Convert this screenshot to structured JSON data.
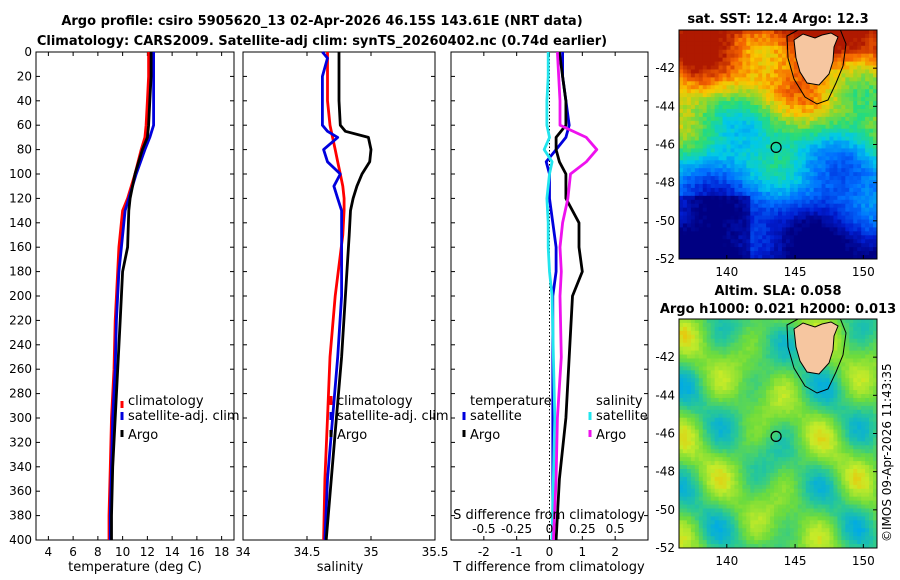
{
  "title_line1": "Argo profile: csiro 5905620_13 02-Apr-2026 46.15S 143.61E (NRT data)",
  "title_line2": "Climatology: CARS2009. Satellite-adj clim: synTS_20260402.nc (0.74d earlier)",
  "watermark": "©IMOS 09-Apr-2026 11:43:35",
  "colors": {
    "climatology": "#ff0000",
    "satellite_adj": "#0000dd",
    "argo": "#000000",
    "sal_satellite": "#22e5ee",
    "sal_argo": "#ee11ee",
    "land": "#f6c6a0"
  },
  "depth_axis": {
    "ylim": [
      0,
      400
    ],
    "ticks": [
      "0",
      "20",
      "40",
      "60",
      "80",
      "100",
      "120",
      "140",
      "160",
      "180",
      "200",
      "220",
      "240",
      "260",
      "280",
      "300",
      "320",
      "340",
      "360",
      "380",
      "400"
    ]
  },
  "chart_data": [
    {
      "type": "line",
      "id": "temperature",
      "xlabel": "temperature (deg C)",
      "xlim": [
        3,
        19
      ],
      "xticks": [
        "4",
        "6",
        "8",
        "10",
        "12",
        "14",
        "16",
        "18"
      ],
      "ylim": [
        400,
        0
      ],
      "depth": [
        0,
        20,
        40,
        60,
        70,
        80,
        100,
        120,
        130,
        160,
        180,
        220,
        260,
        300,
        340,
        380,
        400
      ],
      "series": [
        {
          "name": "climatology",
          "values": [
            12.1,
            12.1,
            12.0,
            11.9,
            11.8,
            11.5,
            11.0,
            10.4,
            10.0,
            9.7,
            9.6,
            9.4,
            9.3,
            9.1,
            9.0,
            8.9,
            8.9
          ]
        },
        {
          "name": "satellite-adj. clim",
          "values": [
            12.5,
            12.5,
            12.5,
            12.5,
            12.2,
            11.8,
            11.1,
            10.5,
            10.2,
            9.9,
            9.7,
            9.5,
            9.4,
            9.2,
            9.1,
            9.0,
            9.0
          ]
        },
        {
          "name": "Argo",
          "values": [
            12.3,
            12.3,
            12.2,
            12.1,
            12.0,
            11.6,
            11.0,
            10.6,
            10.5,
            10.4,
            10.0,
            9.8,
            9.6,
            9.4,
            9.2,
            9.1,
            9.1
          ]
        }
      ],
      "legend": [
        "climatology",
        "satellite-adj. clim",
        "Argo"
      ]
    },
    {
      "type": "line",
      "id": "salinity",
      "xlabel": "salinity",
      "xlim": [
        34,
        35.5
      ],
      "xticks": [
        "34",
        "34.5",
        "35",
        "35.5"
      ],
      "ylim": [
        400,
        0
      ],
      "depth": [
        0,
        5,
        20,
        40,
        60,
        65,
        70,
        80,
        90,
        100,
        110,
        120,
        130,
        150,
        200,
        250,
        300,
        350,
        400
      ],
      "series": [
        {
          "name": "climatology",
          "values": [
            34.66,
            34.66,
            34.66,
            34.66,
            34.68,
            34.69,
            34.7,
            34.72,
            34.74,
            34.76,
            34.78,
            34.79,
            34.79,
            34.78,
            34.72,
            34.68,
            34.66,
            34.64,
            34.63
          ]
        },
        {
          "name": "satellite-adj. clim",
          "values": [
            34.62,
            34.66,
            34.62,
            34.62,
            34.62,
            34.66,
            34.74,
            34.63,
            34.66,
            34.76,
            34.71,
            34.74,
            34.77,
            34.77,
            34.77,
            34.74,
            34.7,
            34.66,
            34.64
          ]
        },
        {
          "name": "Argo",
          "values": [
            34.75,
            34.75,
            34.75,
            34.75,
            34.76,
            34.8,
            34.98,
            35.0,
            34.99,
            34.93,
            34.89,
            34.86,
            34.84,
            34.83,
            34.8,
            34.77,
            34.73,
            34.69,
            34.65
          ]
        }
      ],
      "legend": [
        "climatology",
        "satellite-adj. clim",
        "Argo"
      ]
    },
    {
      "type": "line",
      "id": "difference",
      "xlabel_bottom": "T difference from climatology",
      "xlabel_top": "S difference from climatology",
      "xlim": [
        -3,
        3
      ],
      "xticks_bottom": [
        "-2",
        "-1",
        "0",
        "1",
        "2"
      ],
      "xticks_top": [
        "-0.5",
        "-0.25",
        "0",
        "0.25",
        "0.5"
      ],
      "s_scale_factor": 4,
      "ylim": [
        400,
        0
      ],
      "depth": [
        0,
        20,
        40,
        60,
        70,
        80,
        90,
        100,
        120,
        140,
        160,
        180,
        200,
        250,
        300,
        350,
        400
      ],
      "series": [
        {
          "name": "temperature satellite",
          "group": "temperature",
          "values": [
            0.4,
            0.4,
            0.5,
            0.6,
            0.5,
            0.2,
            -0.1,
            0.0,
            0.0,
            0.1,
            0.2,
            0.2,
            0.1,
            0.1,
            0.1,
            0.1,
            0.1
          ]
        },
        {
          "name": "temperature Argo",
          "group": "temperature",
          "values": [
            0.3,
            0.4,
            0.5,
            0.5,
            0.2,
            0.2,
            0.3,
            0.5,
            0.5,
            0.9,
            0.9,
            1.0,
            0.7,
            0.6,
            0.5,
            0.3,
            0.2
          ]
        },
        {
          "name": "salinity satellite",
          "group": "salinity",
          "values": [
            -0.01,
            -0.01,
            -0.02,
            -0.02,
            0.0,
            -0.04,
            0.02,
            0.0,
            -0.02,
            -0.01,
            -0.01,
            0.0,
            0.02,
            0.03,
            0.04,
            0.03,
            0.02
          ]
        },
        {
          "name": "salinity Argo",
          "group": "salinity",
          "values": [
            0.06,
            0.07,
            0.08,
            0.08,
            0.28,
            0.36,
            0.28,
            0.16,
            0.14,
            0.1,
            0.08,
            0.09,
            0.08,
            0.09,
            0.06,
            0.05,
            0.03
          ]
        }
      ],
      "legend_groups": [
        {
          "title": "temperature",
          "items": [
            "satellite",
            "Argo"
          ]
        },
        {
          "title": "salinity",
          "items": [
            "satellite",
            "Argo"
          ]
        }
      ]
    },
    {
      "type": "heatmap",
      "id": "sst_map",
      "title": "sat. SST: 12.4 Argo: 12.3",
      "xlim": [
        136.5,
        151
      ],
      "ylim": [
        -52,
        -40
      ],
      "xticks": [
        "140",
        "145",
        "150"
      ],
      "yticks": [
        "-42",
        "-44",
        "-46",
        "-48",
        "-50",
        "-52"
      ],
      "argo_position": [
        143.61,
        -46.15
      ]
    },
    {
      "type": "heatmap",
      "id": "sla_map",
      "title_line1": "Altim. SLA: 0.058",
      "title_line2": "Argo h1000: 0.021 h2000: 0.013",
      "xlim": [
        136.5,
        151
      ],
      "ylim": [
        -52,
        -40
      ],
      "xticks": [
        "140",
        "145",
        "150"
      ],
      "yticks": [
        "-42",
        "-44",
        "-46",
        "-48",
        "-50",
        "-52"
      ],
      "argo_position": [
        143.61,
        -46.15
      ]
    }
  ]
}
